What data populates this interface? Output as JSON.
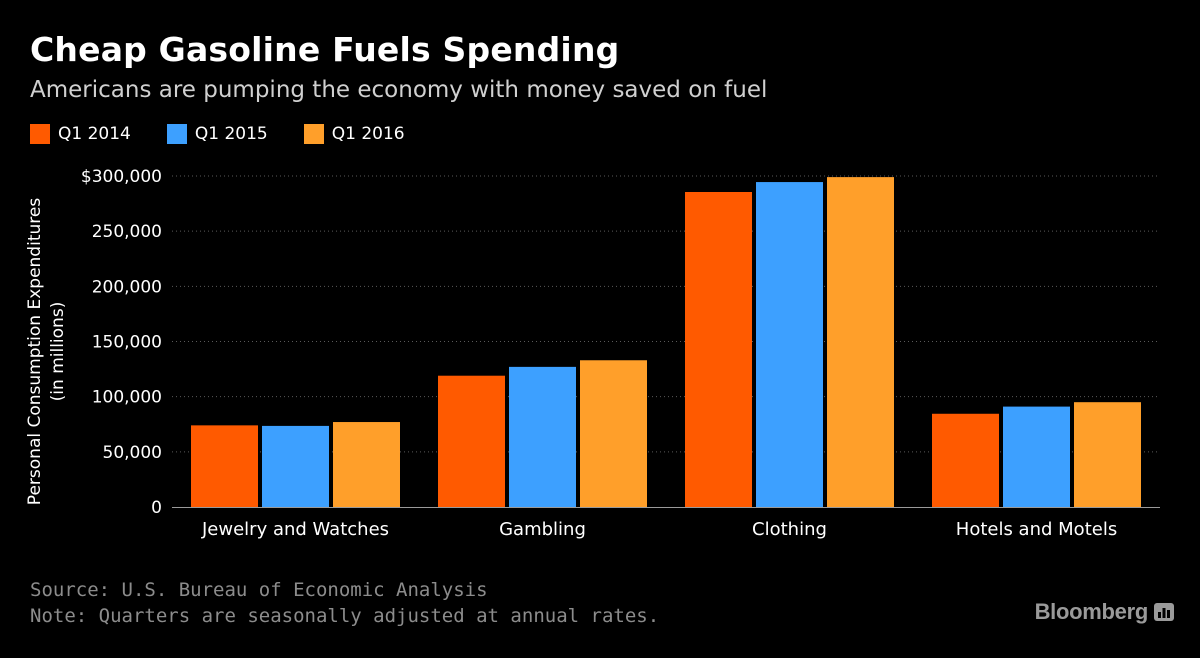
{
  "header": {
    "title": "Cheap Gasoline Fuels Spending",
    "subtitle": "Americans are pumping the economy with money saved on fuel"
  },
  "colors": {
    "background": "#000000",
    "gridline": "#5a5a5a",
    "axis": "#9a9a9a"
  },
  "chart_data": {
    "type": "bar",
    "title": "Cheap Gasoline Fuels Spending",
    "subtitle": "Americans are pumping the economy with money saved on fuel",
    "ylabel": "Personal Consumption Expenditures (in millions)",
    "ylabel_lines": [
      "Personal Consumption Expenditures",
      "(in millions)"
    ],
    "xlabel": "",
    "ylim": [
      0,
      300000
    ],
    "yticks": [
      0,
      50000,
      100000,
      150000,
      200000,
      250000,
      300000
    ],
    "ytick_labels": [
      "0",
      "50,000",
      "100,000",
      "150,000",
      "200,000",
      "250,000",
      "$300,000"
    ],
    "grid": true,
    "legend_position": "top-left",
    "categories": [
      "Jewelry and Watches",
      "Gambling",
      "Clothing",
      "Hotels and Motels"
    ],
    "series": [
      {
        "name": "Q1 2014",
        "color": "#ff5a00",
        "values": [
          74000,
          119000,
          285500,
          84500
        ]
      },
      {
        "name": "Q1 2015",
        "color": "#3da0ff",
        "values": [
          73500,
          127000,
          294500,
          91000
        ]
      },
      {
        "name": "Q1 2016",
        "color": "#ff9f2a",
        "values": [
          77000,
          133000,
          299000,
          95000
        ]
      }
    ]
  },
  "footer": {
    "source": "Source: U.S. Bureau of Economic Analysis",
    "note": "Note: Quarters are seasonally adjusted at annual rates."
  },
  "brand": {
    "name": "Bloomberg",
    "icon": "bar-chart-icon"
  }
}
